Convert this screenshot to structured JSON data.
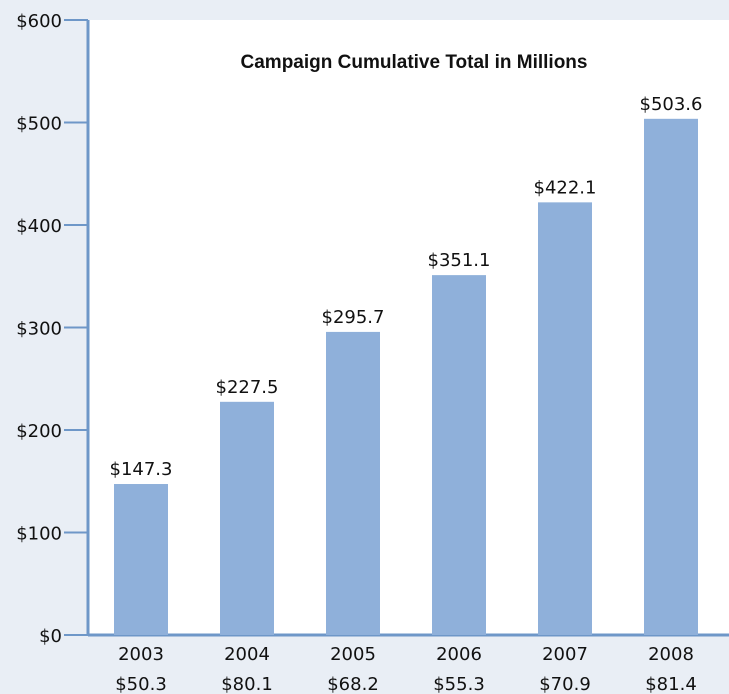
{
  "colors": {
    "background": "#e9eef5",
    "plot_background": "#ffffff",
    "bar": "#8fb0da",
    "axis": "#6e97c8",
    "text": "#111111"
  },
  "chart_data": {
    "type": "bar",
    "title": "Campaign Cumulative Total in Millions",
    "xlabel": "",
    "ylabel": "",
    "categories": [
      "2003",
      "2004",
      "2005",
      "2006",
      "2007",
      "2008"
    ],
    "category_sublabels": [
      "$50.3",
      "$80.1",
      "$68.2",
      "$55.3",
      "$70.9",
      "$81.4"
    ],
    "series": [
      {
        "values": [
          147.3,
          227.5,
          295.7,
          351.1,
          422.1,
          503.6
        ],
        "data_labels": [
          "$147.3",
          "$227.5",
          "$295.7",
          "$351.1",
          "$422.1",
          "$503.6"
        ]
      }
    ],
    "ylim": [
      0,
      600
    ],
    "yticks": [
      0,
      100,
      200,
      300,
      400,
      500,
      600
    ],
    "ytick_labels": [
      "$0",
      "$100",
      "$200",
      "$300",
      "$400",
      "$500",
      "$600"
    ],
    "grid": false,
    "legend": "none"
  }
}
